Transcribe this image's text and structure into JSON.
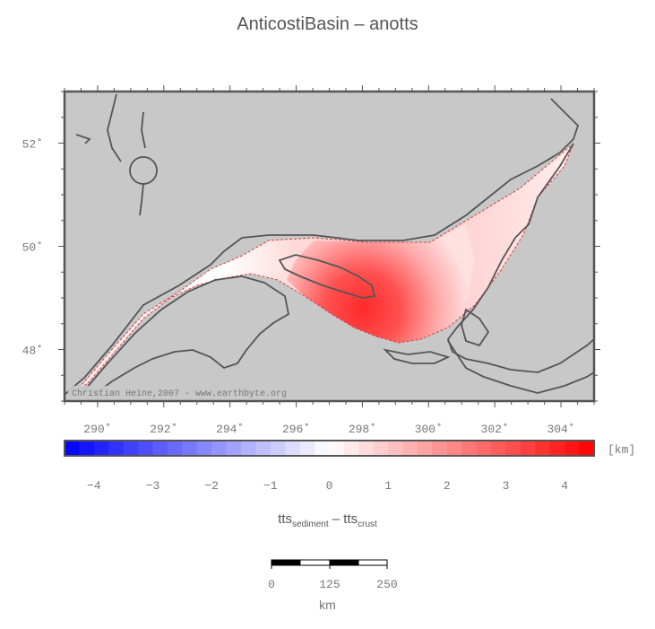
{
  "title": "AnticostiBasin – anotts",
  "map": {
    "lon_ticks": [
      "290˚",
      "292˚",
      "294˚",
      "296˚",
      "298˚",
      "300˚",
      "302˚",
      "304˚"
    ],
    "lat_ticks": [
      "52˚",
      "50˚",
      "48˚"
    ],
    "lon_range": [
      289,
      305
    ],
    "lat_range": [
      47,
      53
    ],
    "background_color": "#c8c8c8",
    "coastline_color": "#555555",
    "credit": "Christian Heine,2007 - www.earthbyte.org"
  },
  "colorbar": {
    "unit": "[km]",
    "ticks": [
      "−4",
      "−3",
      "−2",
      "−1",
      "0",
      "1",
      "2",
      "3",
      "4"
    ],
    "range": [
      -4.5,
      4.5
    ],
    "min_color": "#0000ff",
    "mid_color": "#ffffff",
    "max_color": "#ff0000"
  },
  "formula": {
    "a": "tts",
    "a_sub": "sediment",
    "op": " – ",
    "b": "tts",
    "b_sub": "crust"
  },
  "scalebar": {
    "labels": [
      "0",
      "125",
      "250"
    ],
    "unit": "km"
  }
}
